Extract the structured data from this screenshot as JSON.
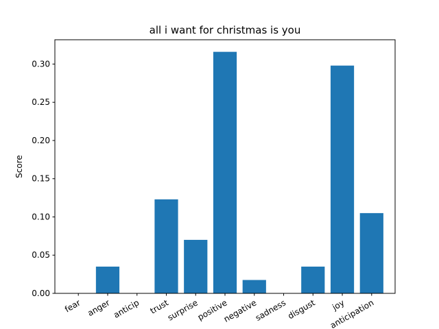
{
  "chart_data": {
    "type": "bar",
    "title": "all i want for christmas is you",
    "xlabel": "",
    "ylabel": "Score",
    "categories": [
      "fear",
      "anger",
      "anticip",
      "trust",
      "surprise",
      "positive",
      "negative",
      "sadness",
      "disgust",
      "joy",
      "anticipation"
    ],
    "values": [
      0.0,
      0.035,
      0.0,
      0.123,
      0.07,
      0.316,
      0.0175,
      0.0,
      0.035,
      0.298,
      0.105
    ],
    "ylim": [
      0,
      0.3318
    ],
    "yticks": [
      "0.00",
      "0.05",
      "0.10",
      "0.15",
      "0.20",
      "0.25",
      "0.30"
    ],
    "grid": false,
    "bar_color": "#1f77b4"
  }
}
